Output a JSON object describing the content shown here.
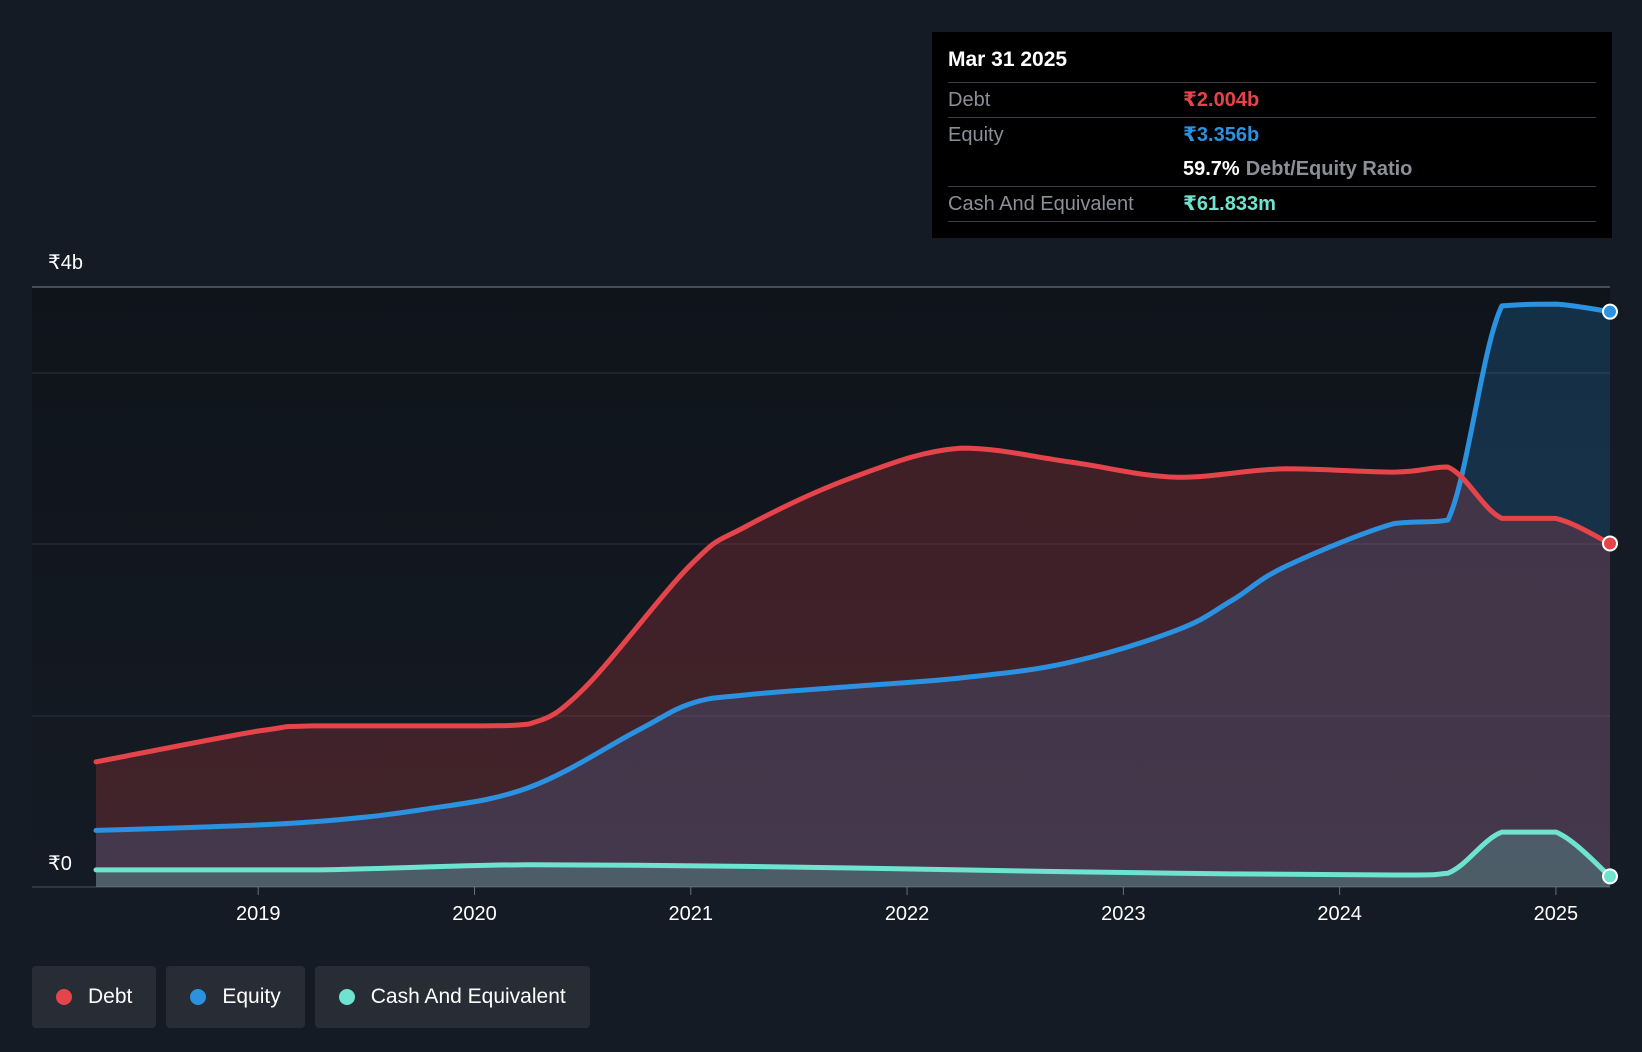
{
  "tooltip": {
    "date": "Mar 31 2025",
    "debt_label": "Debt",
    "debt_value": "₹2.004b",
    "equity_label": "Equity",
    "equity_value": "₹3.356b",
    "ratio_value": "59.7%",
    "ratio_label": "Debt/Equity Ratio",
    "cash_label": "Cash And Equivalent",
    "cash_value": "₹61.833m"
  },
  "legend": [
    {
      "label": "Debt",
      "color": "#e5444a"
    },
    {
      "label": "Equity",
      "color": "#2a92e0"
    },
    {
      "label": "Cash And Equivalent",
      "color": "#6ee3cf"
    }
  ],
  "chart_data": {
    "type": "area",
    "title": "",
    "xlabel": "",
    "ylabel": "",
    "y_top_label": "₹4b",
    "y_bottom_label": "₹0",
    "ylim": [
      0,
      3.5
    ],
    "xlim": [
      2018.25,
      2025.25
    ],
    "x_ticks": [
      "2019",
      "2020",
      "2021",
      "2022",
      "2023",
      "2024",
      "2025"
    ],
    "grid": true,
    "series": [
      {
        "name": "Debt",
        "color": "#e5444a",
        "x": [
          2018.25,
          2019.0,
          2019.25,
          2020.0,
          2020.25,
          2020.5,
          2021.0,
          2021.25,
          2021.75,
          2022.25,
          2022.75,
          2023.25,
          2023.75,
          2024.25,
          2024.5,
          2024.75,
          2025.0,
          2025.25
        ],
        "values": [
          0.73,
          0.91,
          0.94,
          0.94,
          0.95,
          1.15,
          1.88,
          2.1,
          2.39,
          2.56,
          2.48,
          2.39,
          2.44,
          2.42,
          2.45,
          2.15,
          2.15,
          2.004
        ]
      },
      {
        "name": "Equity",
        "color": "#2a92e0",
        "x": [
          2018.25,
          2018.75,
          2019.25,
          2019.75,
          2020.25,
          2020.75,
          2021.0,
          2021.25,
          2021.75,
          2022.25,
          2022.75,
          2023.25,
          2023.5,
          2023.75,
          2024.25,
          2024.5,
          2024.75,
          2025.0,
          2025.25
        ],
        "values": [
          0.33,
          0.35,
          0.38,
          0.45,
          0.58,
          0.91,
          1.07,
          1.12,
          1.17,
          1.22,
          1.31,
          1.5,
          1.67,
          1.87,
          2.12,
          2.14,
          3.39,
          3.4,
          3.356
        ]
      },
      {
        "name": "Cash And Equivalent",
        "color": "#6ee3cf",
        "x": [
          2018.25,
          2019.25,
          2020.25,
          2021.25,
          2022.25,
          2023.25,
          2024.25,
          2024.5,
          2024.75,
          2025.0,
          2025.25
        ],
        "values": [
          0.1,
          0.1,
          0.13,
          0.12,
          0.1,
          0.08,
          0.07,
          0.08,
          0.32,
          0.32,
          0.062
        ]
      }
    ]
  }
}
